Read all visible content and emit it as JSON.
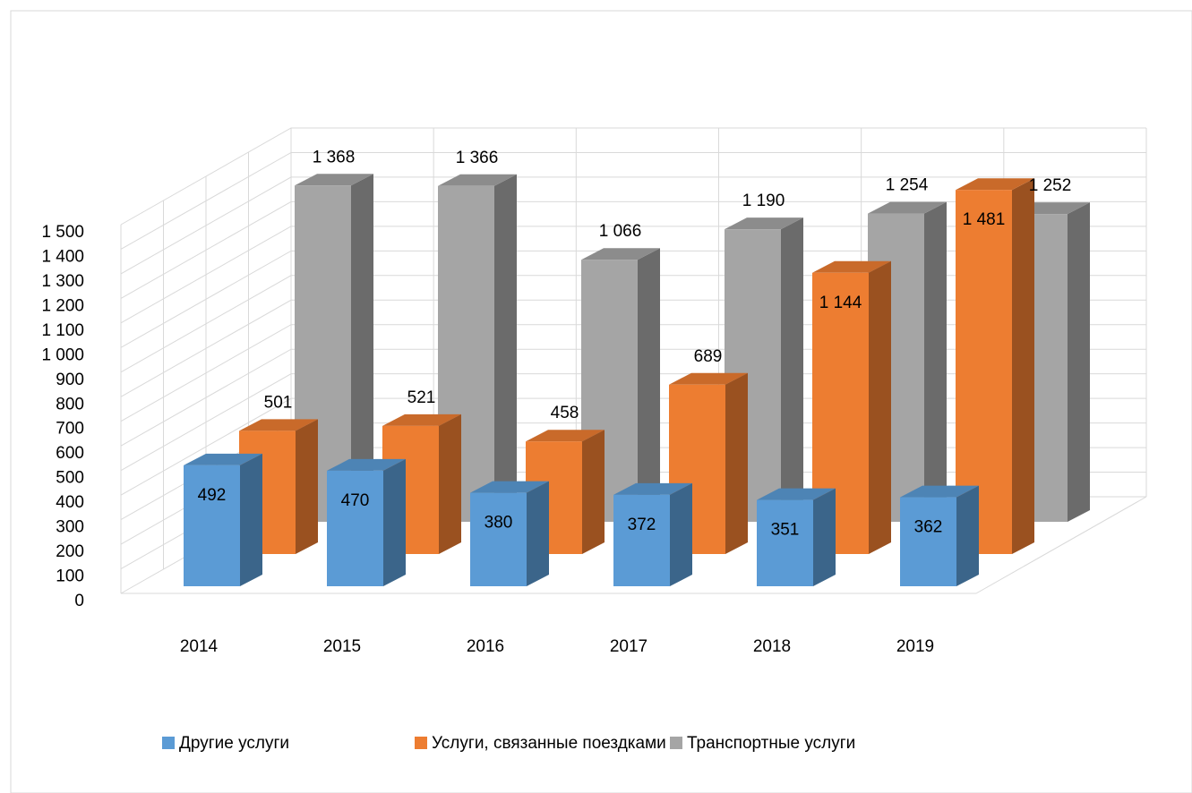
{
  "chart_data": {
    "type": "bar3d",
    "categories": [
      "2014",
      "2015",
      "2016",
      "2017",
      "2018",
      "2019"
    ],
    "series": [
      {
        "name": "Другие услуги",
        "color": "#5b9bd5",
        "values": [
          492,
          470,
          380,
          372,
          351,
          362
        ],
        "value_labels": [
          "492",
          "470",
          "380",
          "372",
          "351",
          "362"
        ]
      },
      {
        "name": "Услуги, связанные поездками",
        "color": "#ed7d31",
        "values": [
          501,
          521,
          458,
          689,
          1144,
          1481
        ],
        "value_labels": [
          "501",
          "521",
          "458",
          "689",
          "1 144",
          "1 481"
        ]
      },
      {
        "name": "Транспортные услуги",
        "color": "#a5a5a5",
        "values": [
          1368,
          1366,
          1066,
          1190,
          1254,
          1252
        ],
        "value_labels": [
          "1 368",
          "1 366",
          "1 066",
          "1 190",
          "1 254",
          "1 252"
        ]
      }
    ],
    "ylim": [
      0,
      1500
    ],
    "yticks": [
      0,
      100,
      200,
      300,
      400,
      500,
      600,
      700,
      800,
      900,
      {
        "value": 1000,
        "label": "1 000"
      },
      {
        "value": 1100,
        "label": "1 100"
      },
      {
        "value": 1200,
        "label": "1 200"
      },
      {
        "value": 1300,
        "label": "1 300"
      },
      {
        "value": 1400,
        "label": "1 400"
      },
      {
        "value": 1500,
        "label": "1 500"
      }
    ],
    "grid": true,
    "legend": "bottom"
  }
}
